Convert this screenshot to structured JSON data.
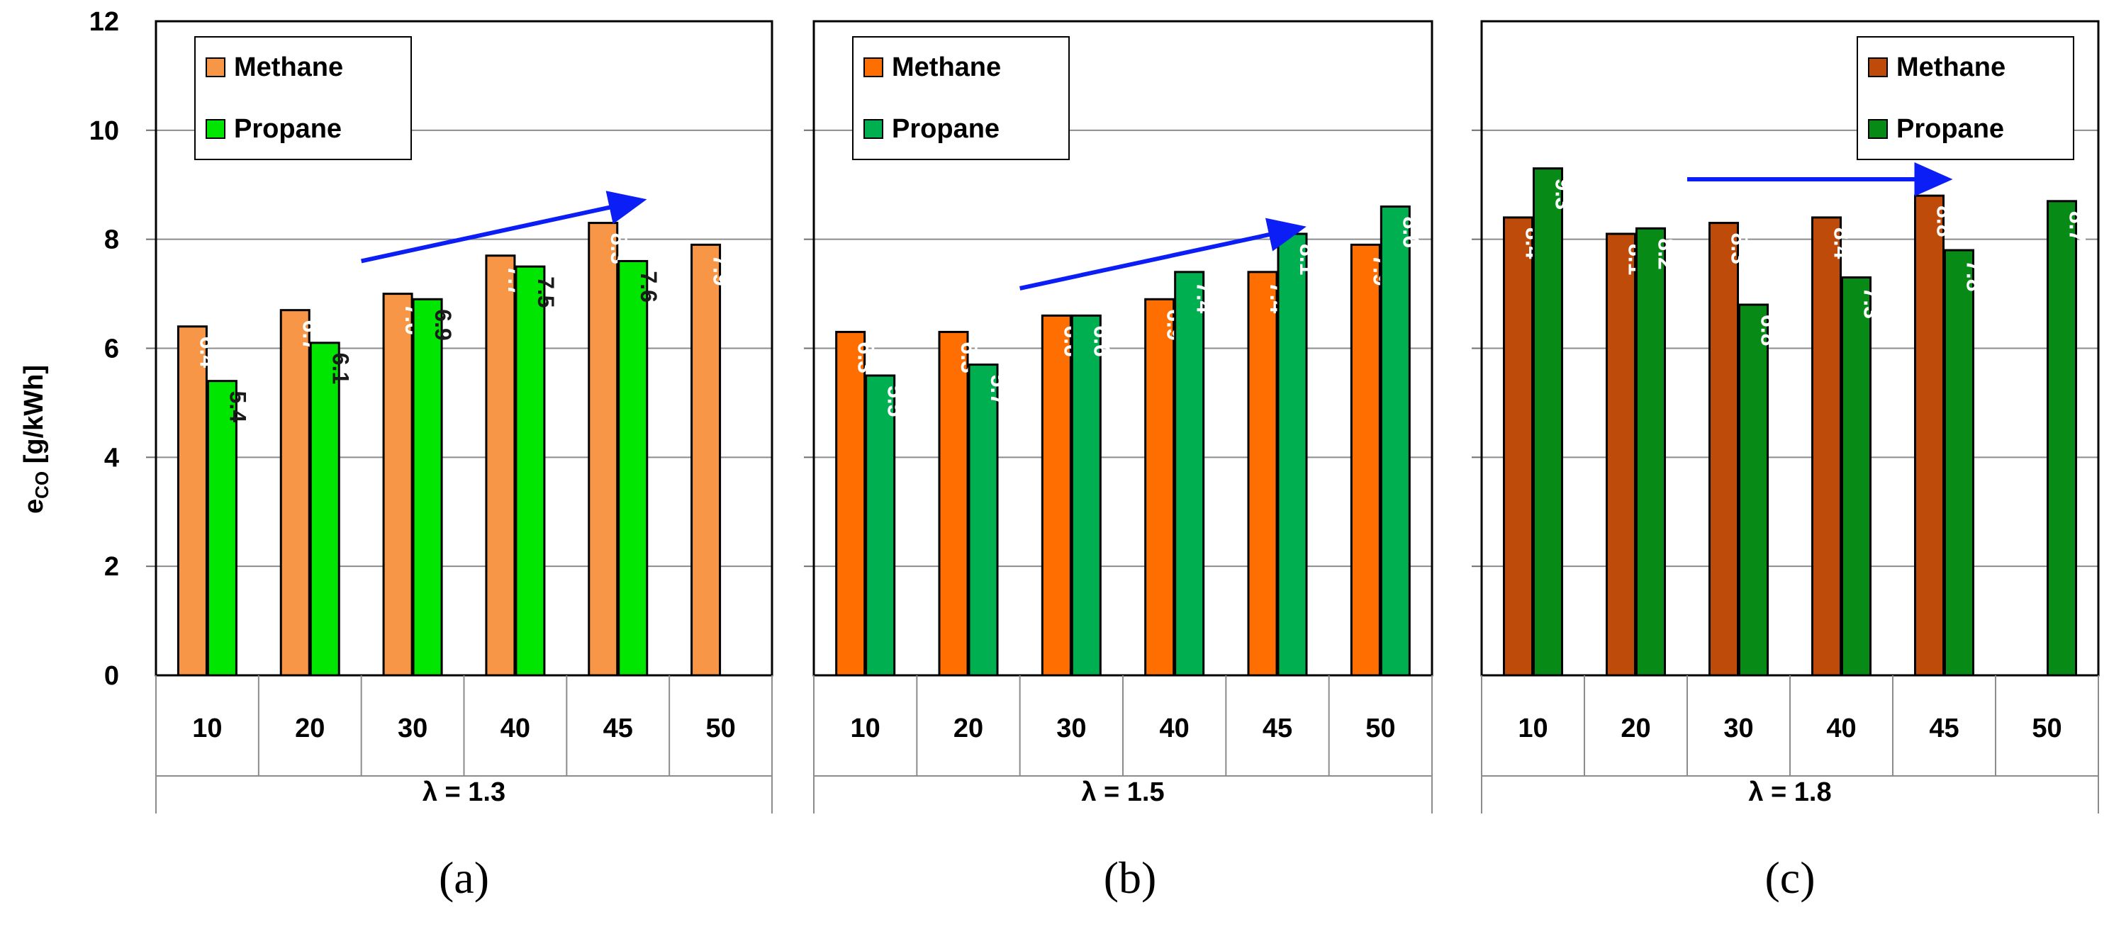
{
  "chart_data": [
    {
      "type": "bar",
      "panel_caption": "(a)",
      "group_label": "λ = 1.3",
      "categories": [
        "10",
        "20",
        "30",
        "40",
        "45",
        "50"
      ],
      "series": [
        {
          "name": "Methane",
          "values": [
            6.4,
            6.7,
            7.0,
            7.7,
            8.3,
            7.9
          ],
          "labels": [
            "6.4",
            "6.7",
            "7.0",
            "7.7",
            "8.3",
            "7.9"
          ],
          "color": "#F79646",
          "label_color": "#FFFFFF"
        },
        {
          "name": "Propane",
          "values": [
            5.4,
            6.1,
            6.9,
            7.5,
            7.6,
            null
          ],
          "labels": [
            "5.4",
            "6.1",
            "6.9",
            "7.5",
            "7.6",
            ""
          ],
          "color": "#00E600",
          "label_color": "#1A1A1A"
        }
      ],
      "legend_position": "top-left",
      "trend_arrow": {
        "from": {
          "category": 1.5,
          "value": 7.6
        },
        "to": {
          "category": 4.2,
          "value": 8.7
        },
        "color": "#0A1EF5"
      }
    },
    {
      "type": "bar",
      "panel_caption": "(b)",
      "group_label": "λ = 1.5",
      "categories": [
        "10",
        "20",
        "30",
        "40",
        "45",
        "50"
      ],
      "series": [
        {
          "name": "Methane",
          "values": [
            6.3,
            6.3,
            6.6,
            6.9,
            7.4,
            7.9
          ],
          "labels": [
            "6.3",
            "6.3",
            "6.6",
            "6.9",
            "7.4",
            "7.9"
          ],
          "color": "#FF6E00",
          "label_color": "#FFFFFF"
        },
        {
          "name": "Propane",
          "values": [
            5.5,
            5.7,
            6.6,
            7.4,
            8.1,
            8.6
          ],
          "labels": [
            "5.5",
            "5.7",
            "6.6",
            "7.4",
            "8.1",
            "8.6"
          ],
          "color": "#00B050",
          "label_color": "#FFFFFF"
        }
      ],
      "legend_position": "top-left",
      "trend_arrow": {
        "from": {
          "category": 1.5,
          "value": 7.1
        },
        "to": {
          "category": 4.2,
          "value": 8.2
        },
        "color": "#0A1EF5"
      }
    },
    {
      "type": "bar",
      "panel_caption": "(c)",
      "group_label": "λ = 1.8",
      "categories": [
        "10",
        "20",
        "30",
        "40",
        "45",
        "50"
      ],
      "series": [
        {
          "name": "Methane",
          "values": [
            8.4,
            8.1,
            8.3,
            8.4,
            8.8,
            null
          ],
          "labels": [
            "8.4",
            "8.1",
            "8.3",
            "8.4",
            "8.8",
            ""
          ],
          "color": "#BE4B0A",
          "label_color": "#FFFFFF"
        },
        {
          "name": "Propane",
          "values": [
            9.3,
            8.2,
            6.8,
            7.3,
            7.8,
            8.7
          ],
          "labels": [
            "9.3",
            "8.2",
            "6.8",
            "7.3",
            "7.8",
            "8.7"
          ],
          "color": "#078A16",
          "label_color": "#FFFFFF"
        }
      ],
      "legend_position": "top-right",
      "trend_arrow": {
        "from": {
          "category": 1.5,
          "value": 9.1
        },
        "to": {
          "category": 4.0,
          "value": 9.1
        },
        "color": "#0A1EF5"
      }
    }
  ],
  "y_axis": {
    "label_main": "e",
    "label_sub": "CO",
    "label_unit": " [g/kWh]",
    "ylim": [
      0,
      12
    ],
    "ticks": [
      "0",
      "2",
      "4",
      "6",
      "8",
      "10",
      "12"
    ],
    "grid": true
  }
}
